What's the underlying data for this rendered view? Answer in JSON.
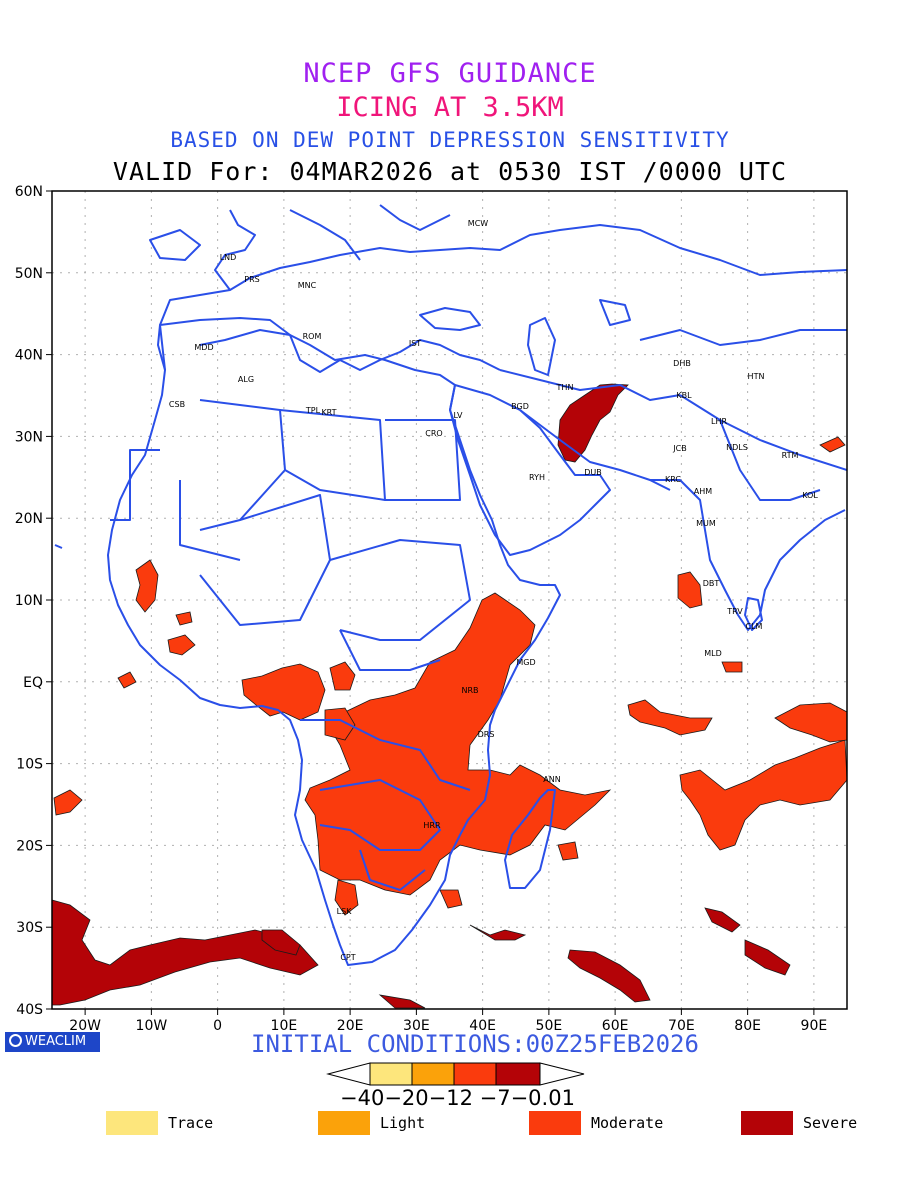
{
  "titles": {
    "line1": "NCEP GFS GUIDANCE",
    "line2": "ICING AT 3.5KM",
    "line3": "BASED ON DEW POINT DEPRESSION SENSITIVITY",
    "line4": "VALID For: 04MAR2026 at 0530 IST /0000 UTC"
  },
  "map": {
    "lon_range": [
      -25,
      95
    ],
    "lat_range": [
      -40,
      60
    ],
    "x_ticks": [
      "20W",
      "10W",
      "0",
      "10E",
      "20E",
      "30E",
      "40E",
      "50E",
      "60E",
      "70E",
      "80E",
      "90E"
    ],
    "y_ticks": [
      "60N",
      "50N",
      "40N",
      "30N",
      "20N",
      "10N",
      "EQ",
      "10S",
      "20S",
      "30S",
      "40S"
    ],
    "grid": "dotted",
    "coastline_color": "#2a4fe8",
    "stations": [
      "MCW",
      "LND",
      "PRS",
      "MNC",
      "ROM",
      "MDD",
      "IST",
      "ALG",
      "CSB",
      "TPL",
      "KRT",
      "CRO",
      "LV",
      "BGD",
      "THN",
      "RYH",
      "DUB",
      "DHB",
      "HTN",
      "KBL",
      "LHR",
      "JCB",
      "NDLS",
      "RTM",
      "KRC",
      "AHM",
      "KOL",
      "MUM",
      "DBT",
      "TRV",
      "CLM",
      "MLD",
      "MGD",
      "NRB",
      "DRS",
      "ANN",
      "HRR",
      "LSK",
      "CPT"
    ]
  },
  "footer": {
    "initial_conditions": "INITIAL CONDITIONS:00Z25FEB2026",
    "brand": "WEACLIM"
  },
  "colorbar": {
    "labels": "−40−20−12 −7−0.01",
    "colors": [
      "#fde67c",
      "#fba20a",
      "#fa3b0d",
      "#b40307"
    ]
  },
  "legend": [
    {
      "label": "Trace",
      "color": "#fde67c"
    },
    {
      "label": "Light",
      "color": "#fba20a"
    },
    {
      "label": "Moderate",
      "color": "#fa3b0d"
    },
    {
      "label": "Severe",
      "color": "#b40307"
    }
  ]
}
